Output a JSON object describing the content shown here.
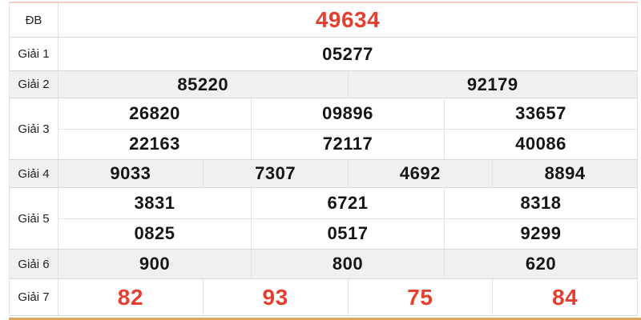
{
  "colors": {
    "highlight_red": "#e5402f",
    "shaded_row_bg": "#f1f0f1",
    "cell_border": "#e2e2e2",
    "bottom_rule": "#dca75e",
    "top_rule": "#f2cdc6"
  },
  "table": {
    "rows": [
      {
        "label": "ĐB",
        "highlight": true,
        "shaded": false,
        "lines": [
          [
            "49634"
          ]
        ]
      },
      {
        "label": "Giải 1",
        "highlight": false,
        "shaded": false,
        "lines": [
          [
            "05277"
          ]
        ]
      },
      {
        "label": "Giải 2",
        "highlight": false,
        "shaded": true,
        "lines": [
          [
            "85220",
            "92179"
          ]
        ]
      },
      {
        "label": "Giải 3",
        "highlight": false,
        "shaded": false,
        "lines": [
          [
            "26820",
            "09896",
            "33657"
          ],
          [
            "22163",
            "72117",
            "40086"
          ]
        ]
      },
      {
        "label": "Giải 4",
        "highlight": false,
        "shaded": true,
        "lines": [
          [
            "9033",
            "7307",
            "4692",
            "8894"
          ]
        ]
      },
      {
        "label": "Giải 5",
        "highlight": false,
        "shaded": false,
        "lines": [
          [
            "3831",
            "6721",
            "8318"
          ],
          [
            "0825",
            "0517",
            "9299"
          ]
        ]
      },
      {
        "label": "Giải 6",
        "highlight": false,
        "shaded": true,
        "lines": [
          [
            "900",
            "800",
            "620"
          ]
        ]
      },
      {
        "label": "Giải 7",
        "highlight": true,
        "shaded": false,
        "lines": [
          [
            "82",
            "93",
            "75",
            "84"
          ]
        ]
      }
    ]
  }
}
